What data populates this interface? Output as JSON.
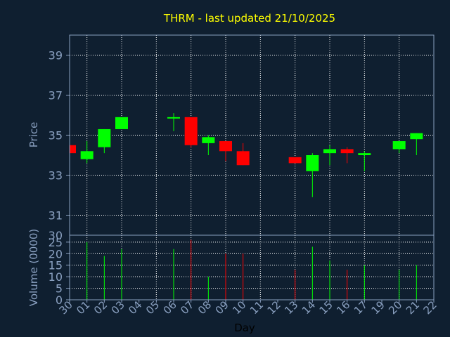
{
  "chart_data": {
    "type": "candlestick",
    "title": "THRM - last updated 21/10/2025",
    "ylabel": "Price",
    "vlabel": "Volume (0000)",
    "xlabel": "Day",
    "ylim": [
      30,
      40
    ],
    "yticks": [
      "31",
      "33",
      "35",
      "37",
      "39"
    ],
    "ybottom_label": "30",
    "vlim": [
      0,
      28
    ],
    "vticks": [
      "0",
      "5",
      "10",
      "15",
      "20",
      "25"
    ],
    "grid": true,
    "colors": {
      "background": "#0f1f30",
      "title": "#ffff00",
      "axis_text": "#8aa0c0",
      "frame": "#8aa0c0",
      "grid": "#ffffff",
      "up": "#00ff00",
      "down": "#ff0000",
      "xlabel": "#000000"
    },
    "days": [
      "30",
      "01",
      "02",
      "03",
      "04",
      "05",
      "06",
      "07",
      "08",
      "09",
      "10",
      "11",
      "12",
      "13",
      "14",
      "15",
      "16",
      "17",
      "19",
      "20",
      "21",
      "22"
    ],
    "candles": [
      {
        "day": "30",
        "open": 34.5,
        "high": 34.5,
        "low": 34.1,
        "close": 34.1,
        "volume": 0
      },
      {
        "day": "01",
        "open": 33.8,
        "high": 34.7,
        "low": 33.6,
        "close": 34.2,
        "volume": 25
      },
      {
        "day": "02",
        "open": 34.4,
        "high": 35.3,
        "low": 34.1,
        "close": 35.3,
        "volume": 19
      },
      {
        "day": "03",
        "open": 35.3,
        "high": 35.9,
        "low": 35.3,
        "close": 35.9,
        "volume": 22
      },
      {
        "day": "06",
        "open": 35.85,
        "high": 36.1,
        "low": 35.2,
        "close": 35.9,
        "volume": 22
      },
      {
        "day": "07",
        "open": 35.9,
        "high": 35.9,
        "low": 34.4,
        "close": 34.5,
        "volume": 26
      },
      {
        "day": "08",
        "open": 34.6,
        "high": 35.0,
        "low": 34.0,
        "close": 34.9,
        "volume": 10
      },
      {
        "day": "09",
        "open": 34.7,
        "high": 34.7,
        "low": 33.7,
        "close": 34.2,
        "volume": 20
      },
      {
        "day": "10",
        "open": 34.2,
        "high": 34.6,
        "low": 33.5,
        "close": 33.5,
        "volume": 20
      },
      {
        "day": "13",
        "open": 33.9,
        "high": 33.9,
        "low": 33.6,
        "close": 33.6,
        "volume": 13
      },
      {
        "day": "14",
        "open": 33.2,
        "high": 34.1,
        "low": 31.9,
        "close": 34.0,
        "volume": 23
      },
      {
        "day": "15",
        "open": 34.1,
        "high": 34.5,
        "low": 33.5,
        "close": 34.3,
        "volume": 17
      },
      {
        "day": "16",
        "open": 34.3,
        "high": 34.4,
        "low": 33.6,
        "close": 34.1,
        "volume": 13
      },
      {
        "day": "17",
        "open": 34.0,
        "high": 34.2,
        "low": 33.2,
        "close": 34.1,
        "volume": 15
      },
      {
        "day": "20",
        "open": 34.3,
        "high": 34.7,
        "low": 34.1,
        "close": 34.7,
        "volume": 13
      },
      {
        "day": "21",
        "open": 34.8,
        "high": 35.1,
        "low": 34.0,
        "close": 35.1,
        "volume": 15
      }
    ]
  }
}
